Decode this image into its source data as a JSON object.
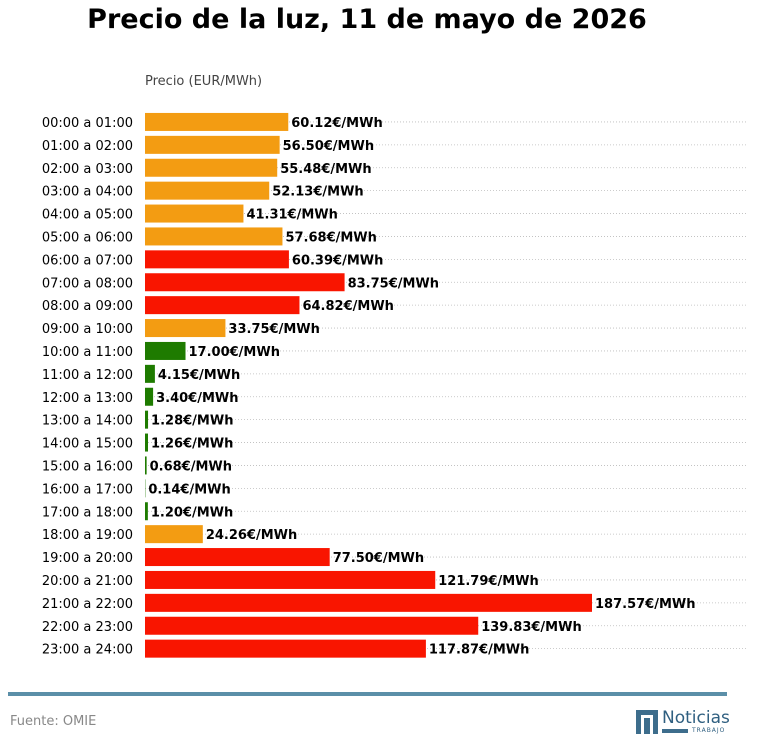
{
  "header": {
    "title": "Precio de la luz, 11 de mayo de 2026"
  },
  "chart_data": {
    "type": "bar",
    "orientation": "horizontal",
    "title": "Precio de la luz, 11 de mayo de 2026",
    "xlabel": "Precio (EUR/MWh)",
    "ylabel": "",
    "xlim": [
      0,
      230
    ],
    "grid": "dotted horizontal",
    "value_suffix": "€/MWh",
    "categories": [
      "00:00 a 01:00",
      "01:00 a 02:00",
      "02:00 a 03:00",
      "03:00 a 04:00",
      "04:00 a 05:00",
      "05:00 a 06:00",
      "06:00 a 07:00",
      "07:00 a 08:00",
      "08:00 a 09:00",
      "09:00 a 10:00",
      "10:00 a 11:00",
      "11:00 a 12:00",
      "12:00 a 13:00",
      "13:00 a 14:00",
      "14:00 a 15:00",
      "15:00 a 16:00",
      "16:00 a 17:00",
      "17:00 a 18:00",
      "18:00 a 19:00",
      "19:00 a 20:00",
      "20:00 a 21:00",
      "21:00 a 22:00",
      "22:00 a 23:00",
      "23:00 a 24:00"
    ],
    "values": [
      60.12,
      56.5,
      55.48,
      52.13,
      41.31,
      57.68,
      60.39,
      83.75,
      64.82,
      33.75,
      17.0,
      4.15,
      3.4,
      1.28,
      1.26,
      0.68,
      0.14,
      1.2,
      24.26,
      77.5,
      121.79,
      187.57,
      139.83,
      117.87
    ],
    "labels": [
      "60.12€/MWh",
      "56.50€/MWh",
      "55.48€/MWh",
      "52.13€/MWh",
      "41.31€/MWh",
      "57.68€/MWh",
      "60.39€/MWh",
      "83.75€/MWh",
      "64.82€/MWh",
      "33.75€/MWh",
      "17.00€/MWh",
      "4.15€/MWh",
      "3.40€/MWh",
      "1.28€/MWh",
      "1.26€/MWh",
      "0.68€/MWh",
      "0.14€/MWh",
      "1.20€/MWh",
      "24.26€/MWh",
      "77.50€/MWh",
      "121.79€/MWh",
      "187.57€/MWh",
      "139.83€/MWh",
      "117.87€/MWh"
    ],
    "bar_colors": [
      "#f39c12",
      "#f39c12",
      "#f39c12",
      "#f39c12",
      "#f39c12",
      "#f39c12",
      "#f91500",
      "#f91500",
      "#f91500",
      "#f39c12",
      "#1e7b00",
      "#1e7b00",
      "#1e7b00",
      "#1e7b00",
      "#1e7b00",
      "#1e7b00",
      "#1e7b00",
      "#1e7b00",
      "#f39c12",
      "#f91500",
      "#f91500",
      "#f91500",
      "#f91500",
      "#f91500"
    ]
  },
  "footer": {
    "source": "Fuente: OMIE",
    "logo_text": "Noticias",
    "logo_subtext": "TRABAJO",
    "accent_color": "#5b8fa8"
  }
}
